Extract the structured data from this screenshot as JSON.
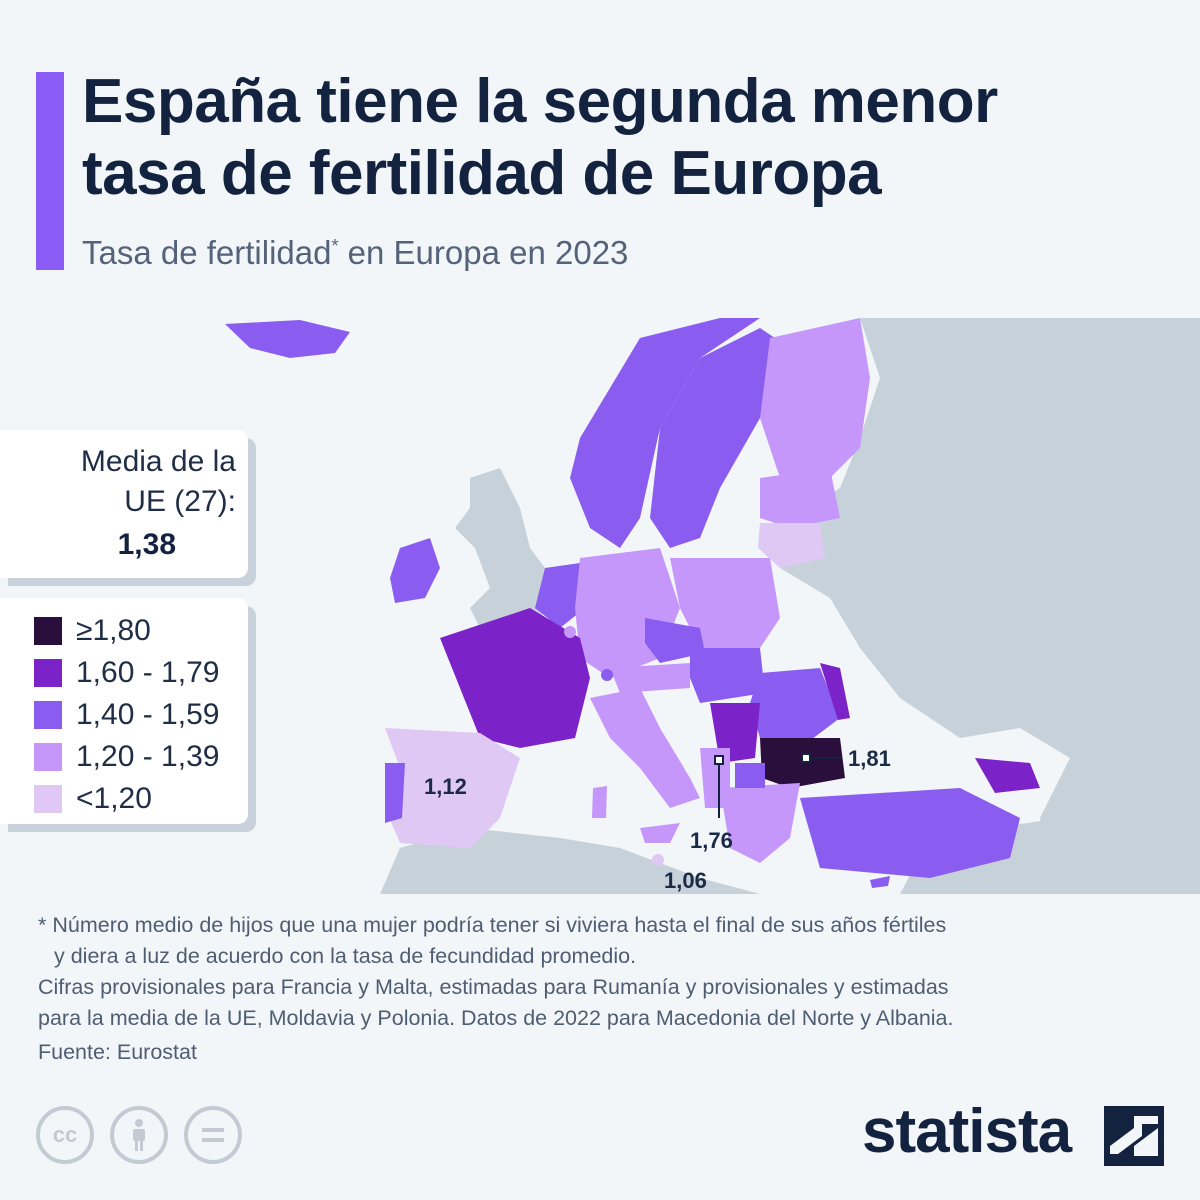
{
  "header": {
    "title_line1": "España tiene la segunda menor",
    "title_line2": "tasa de fertilidad de Europa",
    "subtitle": "Tasa de fertilidad",
    "subtitle_mark": "*",
    "subtitle_rest": " en Europa en 2023"
  },
  "eu_average": {
    "label": "Media de la UE (27):",
    "value": "1,38"
  },
  "legend": [
    {
      "label": "≥1,80",
      "color": "#2a0f3d"
    },
    {
      "label": "1,60 - 1,79",
      "color": "#7c22c9"
    },
    {
      "label": "1,40 - 1,59",
      "color": "#8a5cf0"
    },
    {
      "label": "1,20 - 1,39",
      "color": "#c597fb"
    },
    {
      "label": "<1,20",
      "color": "#e0c8f5"
    }
  ],
  "map_labels": {
    "spain": "1,12",
    "bulgaria": "1,81",
    "montenegro": "1,76",
    "malta": "1,06"
  },
  "colors": {
    "sea": "#f3f6f9",
    "non_eu_land": "#c7d1da",
    "accent": "#8b5cf6",
    "text": "#13233f"
  },
  "footnotes": {
    "line1": "* Número medio de hijos que una mujer podría tener si viviera hasta el final de sus años fértiles",
    "line2": "y diera a luz de acuerdo con la tasa de fecundidad promedio.",
    "line3": "Cifras provisionales para Francia y Malta, estimadas para Rumanía y provisionales y estimadas",
    "line4": "para la media de la UE, Moldavia y Polonia. Datos de 2022 para Macedonia del Norte y Albania."
  },
  "source": "Fuente: Eurostat",
  "license_icons": [
    "creative-commons-icon",
    "attribution-icon",
    "no-derivatives-icon"
  ],
  "brand": {
    "name": "statista"
  }
}
